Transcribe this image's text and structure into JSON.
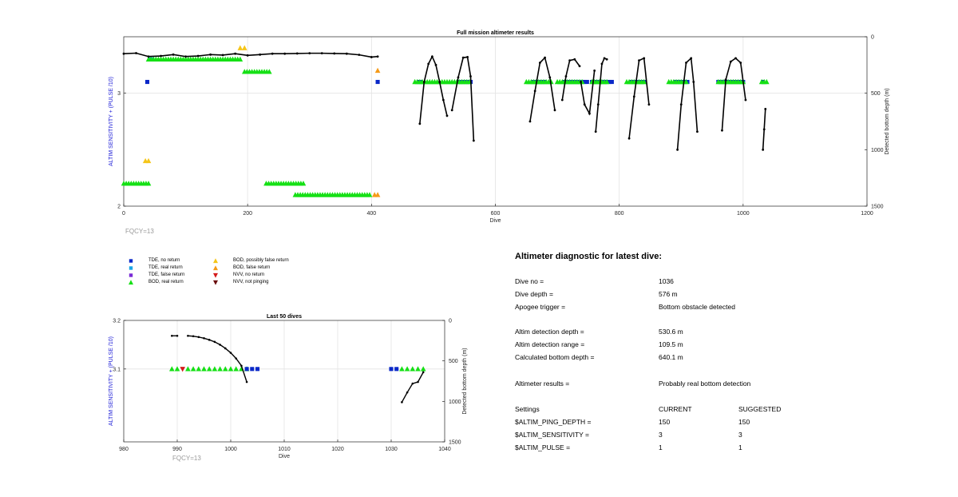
{
  "chart_data": [
    {
      "type": "scatter",
      "title": "Full mission altimeter results",
      "xlabel": "Dive",
      "ylabel": "ALTIM SENSITIVITY + (PULSE /10)",
      "y2label": "Detected bottom depth (m)",
      "xlim": [
        0,
        1200
      ],
      "ylim": [
        2,
        3.5
      ],
      "y2lim": [
        1500,
        0
      ],
      "y2_reversed": true,
      "xticks": [
        0,
        200,
        400,
        600,
        800,
        1000,
        1200
      ],
      "yticks": [
        2,
        3
      ],
      "y2ticks": [
        0,
        500,
        1000,
        1500
      ],
      "grid": true,
      "annotation": "FQCY=13",
      "categorical_series": [
        {
          "name": "TDE, no return",
          "symbol": "square",
          "color": "#0a28c8",
          "y": 3.1,
          "x_ranges": [
            [
              38,
              38
            ],
            [
              410,
              412
            ],
            [
              476,
              482
            ],
            [
              540,
              560
            ],
            [
              660,
              680
            ],
            [
              712,
              750
            ],
            [
              756,
              790
            ],
            [
              820,
              842
            ],
            [
              890,
              910
            ],
            [
              960,
              1000
            ],
            [
              1032,
              1034
            ]
          ]
        },
        {
          "name": "TDE, real return",
          "symbol": "square",
          "color": "#1aa6e6",
          "y": 3.3,
          "x_ranges": [
            [
              42,
              48
            ]
          ]
        },
        {
          "name": "BOD, real return",
          "symbol": "triangle-up",
          "color": "#15e015",
          "y_ranges": [
            [
              3.3,
              40,
              190
            ],
            [
              2.2,
              0,
              40
            ],
            [
              3.19,
              195,
              235
            ],
            [
              2.2,
              230,
              290
            ],
            [
              2.1,
              277,
              400
            ],
            [
              3.1,
              470,
              560
            ],
            [
              3.1,
              650,
              690
            ],
            [
              3.1,
              700,
              740
            ],
            [
              3.1,
              756,
              780
            ],
            [
              3.1,
              812,
              842
            ],
            [
              3.1,
              880,
              910
            ],
            [
              3.1,
              960,
              1000
            ],
            [
              3.1,
              1030,
              1038
            ]
          ]
        },
        {
          "name": "BOD, possibly false return",
          "symbol": "triangle-up",
          "color": "#f5c518",
          "points": [
            [
              188,
              3.4
            ],
            [
              195,
              3.4
            ],
            [
              35,
              2.4
            ],
            [
              40,
              2.4
            ]
          ]
        },
        {
          "name": "BOD, false return",
          "symbol": "triangle-up",
          "color": "#f59a18",
          "points": [
            [
              410,
              3.2
            ],
            [
              405,
              2.1
            ],
            [
              410,
              2.1
            ]
          ]
        }
      ],
      "depth_series": {
        "name": "Detected bottom depth",
        "segments": [
          {
            "x": [
              0,
              20,
              40,
              60,
              80,
              100,
              120,
              140,
              160,
              180,
              200,
              220,
              240,
              260,
              280,
              300,
              320,
              340,
              360,
              380,
              400,
              410
            ],
            "y": [
              150,
              145,
              175,
              170,
              158,
              175,
              170,
              158,
              162,
              150,
              165,
              158,
              150,
              150,
              148,
              146,
              146,
              148,
              150,
              160,
              180,
              175
            ]
          },
          {
            "x": [
              478,
              485,
              492,
              498,
              504,
              510,
              516,
              522
            ],
            "y": [
              770,
              400,
              240,
              175,
              250,
              400,
              560,
              700
            ]
          },
          {
            "x": [
              530,
              540,
              548,
              555,
              560,
              565
            ],
            "y": [
              650,
              360,
              185,
              180,
              350,
              920
            ]
          },
          {
            "x": [
              656,
              664,
              672,
              680,
              688,
              696
            ],
            "y": [
              750,
              480,
              230,
              185,
              360,
              650
            ]
          },
          {
            "x": [
              708,
              714,
              720,
              728,
              736
            ],
            "y": [
              560,
              350,
              210,
              200,
              260
            ]
          },
          {
            "x": [
              738,
              744,
              752,
              760
            ],
            "y": [
              400,
              600,
              680,
              300
            ]
          },
          {
            "x": [
              762,
              766,
              772,
              776,
              780
            ],
            "y": [
              840,
              600,
              240,
              190,
              200
            ]
          },
          {
            "x": [
              816,
              824,
              832,
              840,
              848
            ],
            "y": [
              900,
              530,
              210,
              190,
              600
            ]
          },
          {
            "x": [
              894,
              900,
              908,
              916,
              920,
              926
            ],
            "y": [
              1000,
              600,
              230,
              190,
              400,
              840
            ]
          },
          {
            "x": [
              966,
              972,
              980,
              988,
              996,
              1004
            ],
            "y": [
              830,
              380,
              220,
              190,
              230,
              560
            ]
          },
          {
            "x": [
              1032,
              1034,
              1036
            ],
            "y": [
              1000,
              820,
              640
            ]
          }
        ]
      }
    },
    {
      "type": "scatter",
      "title": "Last 50 dives",
      "xlabel": "Dive",
      "ylabel": "ALTIM SENSITIVITY + (PULSE /10)",
      "y2label": "Detected bottom depth (m)",
      "xlim": [
        980,
        1040
      ],
      "ylim": [
        2.95,
        3.2
      ],
      "y2lim": [
        1500,
        0
      ],
      "y2_reversed": true,
      "xticks": [
        980,
        990,
        1000,
        1010,
        1020,
        1030,
        1040
      ],
      "yticks": [
        3.1,
        3.2
      ],
      "y2ticks": [
        0,
        500,
        1000,
        1500
      ],
      "grid": true,
      "annotation": "FQCY=13",
      "categorical_series": [
        {
          "name": "BOD, real return",
          "symbol": "triangle-up",
          "color": "#15e015",
          "y": 3.1,
          "x": [
            989,
            990,
            992,
            993,
            994,
            995,
            996,
            997,
            998,
            999,
            1000,
            1001,
            1002,
            1003,
            1032,
            1033,
            1034,
            1035,
            1036
          ]
        },
        {
          "name": "NVV, no return",
          "symbol": "triangle-down",
          "color": "#d41a1a",
          "y": 3.1,
          "x": [
            991
          ]
        },
        {
          "name": "TDE, no return",
          "symbol": "square",
          "color": "#0a28c8",
          "y": 3.1,
          "x": [
            1003,
            1004,
            1005,
            1030,
            1031
          ]
        }
      ],
      "depth_series": {
        "name": "Detected bottom depth",
        "segments": [
          {
            "x": [
              989,
              990
            ],
            "y": [
              190,
              190
            ]
          },
          {
            "x": [
              992,
              993,
              994,
              995,
              996,
              997,
              998,
              999,
              1000,
              1001,
              1002,
              1003
            ],
            "y": [
              190,
              195,
              205,
              220,
              240,
              265,
              300,
              345,
              400,
              470,
              560,
              760
            ]
          },
          {
            "x": [
              1032,
              1033,
              1034,
              1035,
              1036
            ],
            "y": [
              1010,
              890,
              780,
              760,
              640
            ]
          }
        ]
      }
    }
  ],
  "legend": [
    {
      "label": "TDE, no return",
      "symbol": "square",
      "color": "#0a28c8"
    },
    {
      "label": "TDE, real return",
      "symbol": "square",
      "color": "#1aa6e6"
    },
    {
      "label": "TDE, false return",
      "symbol": "square",
      "color": "#7a2ad6"
    },
    {
      "label": "BOD, real return",
      "symbol": "triangle-up",
      "color": "#15e015"
    },
    {
      "label": "BOD, possibly false return",
      "symbol": "triangle-up",
      "color": "#f5c518"
    },
    {
      "label": "BOD, false return",
      "symbol": "triangle-up",
      "color": "#f59a18"
    },
    {
      "label": "NVV, no return",
      "symbol": "triangle-down",
      "color": "#d41a1a"
    },
    {
      "label": "NVV, not pinging",
      "symbol": "triangle-down",
      "color": "#6b0e0e"
    }
  ],
  "diagnostic": {
    "title": "Altimeter diagnostic for latest dive:",
    "rows": [
      {
        "label": "Dive no =",
        "value": "1036"
      },
      {
        "label": "Dive depth =",
        "value": "576 m"
      },
      {
        "label": "Apogee trigger =",
        "value": "Bottom obstacle detected"
      },
      {
        "label": "Altim detection depth =",
        "value": "530.6 m"
      },
      {
        "label": "Altim detection range =",
        "value": "109.5 m"
      },
      {
        "label": "Calculated bottom depth =",
        "value": "640.1 m"
      },
      {
        "label": "Altimeter results =",
        "value": "Probably real bottom detection"
      }
    ],
    "settings": {
      "header": {
        "label": "Settings",
        "current": "CURRENT",
        "suggested": "SUGGESTED"
      },
      "rows": [
        {
          "label": "$ALTIM_PING_DEPTH =",
          "current": "150",
          "suggested": "150"
        },
        {
          "label": "$ALTIM_SENSITIVITY =",
          "current": "3",
          "suggested": "3"
        },
        {
          "label": "$ALTIM_PULSE =",
          "current": "1",
          "suggested": "1"
        }
      ]
    }
  },
  "colors": {
    "depth_line": "#000000",
    "grid": "#e3e3e3",
    "axis": "#262626",
    "ylabel": "#1a1ad6",
    "annotation": "#9a9a9a"
  }
}
